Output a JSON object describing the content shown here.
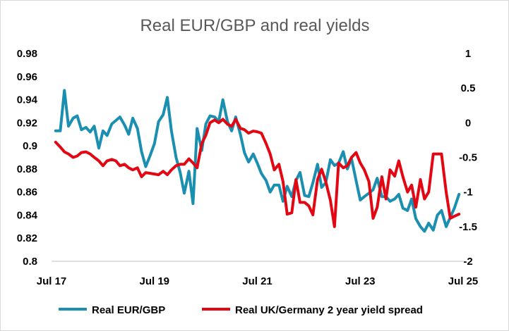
{
  "chart_data": {
    "type": "line",
    "title": "Real EUR/GBP and real yields",
    "x_ticks": [
      "Jul 17",
      "Jul 19",
      "Jul 21",
      "Jul 23",
      "Jul 25"
    ],
    "x_range": [
      "2017-07",
      "2025-07"
    ],
    "y_left": {
      "ticks": [
        "0.98",
        "0.96",
        "0.94",
        "0.92",
        "0.9",
        "0.88",
        "0.86",
        "0.84",
        "0.82",
        "0.8"
      ],
      "range": [
        0.8,
        0.98
      ]
    },
    "y_right": {
      "ticks": [
        "1",
        "0.5",
        "0",
        "-0.5",
        "-1",
        "-1.5",
        "-2"
      ],
      "range": [
        -2,
        1
      ]
    },
    "grid": false,
    "legend_position": "bottom",
    "series": [
      {
        "name": "Real EUR/GBP",
        "axis": "left",
        "color": "#1b8fb0",
        "values": [
          [
            2017.58,
            0.913
          ],
          [
            2017.67,
            0.913
          ],
          [
            2017.75,
            0.948
          ],
          [
            2017.83,
            0.917
          ],
          [
            2017.92,
            0.924
          ],
          [
            2018.0,
            0.926
          ],
          [
            2018.08,
            0.914
          ],
          [
            2018.17,
            0.916
          ],
          [
            2018.25,
            0.912
          ],
          [
            2018.33,
            0.917
          ],
          [
            2018.42,
            0.898
          ],
          [
            2018.5,
            0.913
          ],
          [
            2018.58,
            0.909
          ],
          [
            2018.67,
            0.919
          ],
          [
            2018.75,
            0.922
          ],
          [
            2018.83,
            0.925
          ],
          [
            2018.92,
            0.918
          ],
          [
            2019.0,
            0.91
          ],
          [
            2019.08,
            0.924
          ],
          [
            2019.17,
            0.915
          ],
          [
            2019.25,
            0.895
          ],
          [
            2019.33,
            0.882
          ],
          [
            2019.42,
            0.892
          ],
          [
            2019.5,
            0.902
          ],
          [
            2019.58,
            0.921
          ],
          [
            2019.67,
            0.927
          ],
          [
            2019.75,
            0.942
          ],
          [
            2019.83,
            0.913
          ],
          [
            2019.92,
            0.89
          ],
          [
            2020.0,
            0.877
          ],
          [
            2020.08,
            0.859
          ],
          [
            2020.17,
            0.878
          ],
          [
            2020.25,
            0.85
          ],
          [
            2020.33,
            0.915
          ],
          [
            2020.42,
            0.896
          ],
          [
            2020.5,
            0.919
          ],
          [
            2020.58,
            0.926
          ],
          [
            2020.67,
            0.925
          ],
          [
            2020.75,
            0.921
          ],
          [
            2020.83,
            0.94
          ],
          [
            2020.92,
            0.921
          ],
          [
            2021.0,
            0.913
          ],
          [
            2021.08,
            0.925
          ],
          [
            2021.17,
            0.91
          ],
          [
            2021.25,
            0.894
          ],
          [
            2021.33,
            0.886
          ],
          [
            2021.42,
            0.893
          ],
          [
            2021.5,
            0.885
          ],
          [
            2021.58,
            0.876
          ],
          [
            2021.67,
            0.87
          ],
          [
            2021.75,
            0.86
          ],
          [
            2021.83,
            0.866
          ],
          [
            2021.92,
            0.866
          ],
          [
            2022.0,
            0.852
          ],
          [
            2022.08,
            0.865
          ],
          [
            2022.17,
            0.856
          ],
          [
            2022.25,
            0.87
          ],
          [
            2022.33,
            0.877
          ],
          [
            2022.42,
            0.857
          ],
          [
            2022.5,
            0.856
          ],
          [
            2022.58,
            0.868
          ],
          [
            2022.67,
            0.884
          ],
          [
            2022.75,
            0.864
          ],
          [
            2022.83,
            0.868
          ],
          [
            2022.92,
            0.888
          ],
          [
            2023.0,
            0.883
          ],
          [
            2023.08,
            0.885
          ],
          [
            2023.17,
            0.895
          ],
          [
            2023.25,
            0.88
          ],
          [
            2023.33,
            0.889
          ],
          [
            2023.42,
            0.87
          ],
          [
            2023.5,
            0.853
          ],
          [
            2023.58,
            0.856
          ],
          [
            2023.67,
            0.859
          ],
          [
            2023.75,
            0.862
          ],
          [
            2023.83,
            0.872
          ],
          [
            2023.92,
            0.856
          ],
          [
            2024.0,
            0.856
          ],
          [
            2024.08,
            0.852
          ],
          [
            2024.17,
            0.854
          ],
          [
            2024.25,
            0.858
          ],
          [
            2024.33,
            0.846
          ],
          [
            2024.42,
            0.844
          ],
          [
            2024.5,
            0.854
          ],
          [
            2024.58,
            0.837
          ],
          [
            2024.67,
            0.83
          ],
          [
            2024.75,
            0.826
          ],
          [
            2024.83,
            0.833
          ],
          [
            2024.92,
            0.827
          ],
          [
            2025.0,
            0.84
          ],
          [
            2025.08,
            0.844
          ],
          [
            2025.17,
            0.83
          ],
          [
            2025.25,
            0.838
          ],
          [
            2025.33,
            0.846
          ],
          [
            2025.42,
            0.858
          ]
        ]
      },
      {
        "name": "Real UK/Germany 2 year yield spread",
        "axis": "right",
        "color": "#e30613",
        "values": [
          [
            2017.58,
            -0.28
          ],
          [
            2017.67,
            -0.35
          ],
          [
            2017.75,
            -0.42
          ],
          [
            2017.83,
            -0.45
          ],
          [
            2017.92,
            -0.5
          ],
          [
            2018.0,
            -0.48
          ],
          [
            2018.08,
            -0.43
          ],
          [
            2018.17,
            -0.42
          ],
          [
            2018.25,
            -0.45
          ],
          [
            2018.33,
            -0.5
          ],
          [
            2018.42,
            -0.55
          ],
          [
            2018.5,
            -0.62
          ],
          [
            2018.58,
            -0.55
          ],
          [
            2018.67,
            -0.53
          ],
          [
            2018.75,
            -0.55
          ],
          [
            2018.83,
            -0.62
          ],
          [
            2018.92,
            -0.6
          ],
          [
            2019.0,
            -0.65
          ],
          [
            2019.08,
            -0.68
          ],
          [
            2019.17,
            -0.65
          ],
          [
            2019.25,
            -0.78
          ],
          [
            2019.33,
            -0.72
          ],
          [
            2019.42,
            -0.73
          ],
          [
            2019.5,
            -0.74
          ],
          [
            2019.58,
            -0.75
          ],
          [
            2019.67,
            -0.7
          ],
          [
            2019.75,
            -0.75
          ],
          [
            2019.83,
            -0.68
          ],
          [
            2019.92,
            -0.62
          ],
          [
            2020.0,
            -0.6
          ],
          [
            2020.08,
            -0.6
          ],
          [
            2020.17,
            -0.52
          ],
          [
            2020.25,
            -0.58
          ],
          [
            2020.33,
            -0.65
          ],
          [
            2020.42,
            -0.3
          ],
          [
            2020.5,
            -0.18
          ],
          [
            2020.58,
            0.0
          ],
          [
            2020.67,
            0.04
          ],
          [
            2020.75,
            0.0
          ],
          [
            2020.83,
            0.05
          ],
          [
            2020.92,
            -0.02
          ],
          [
            2021.0,
            -0.05
          ],
          [
            2021.08,
            0.05
          ],
          [
            2021.17,
            -0.08
          ],
          [
            2021.25,
            -0.1
          ],
          [
            2021.33,
            -0.15
          ],
          [
            2021.42,
            -0.12
          ],
          [
            2021.5,
            -0.13
          ],
          [
            2021.58,
            -0.15
          ],
          [
            2021.67,
            -0.3
          ],
          [
            2021.75,
            -0.45
          ],
          [
            2021.83,
            -0.68
          ],
          [
            2021.92,
            -0.6
          ],
          [
            2022.0,
            -0.85
          ],
          [
            2022.08,
            -1.32
          ],
          [
            2022.17,
            -1.3
          ],
          [
            2022.25,
            -0.82
          ],
          [
            2022.33,
            -1.15
          ],
          [
            2022.42,
            -1.15
          ],
          [
            2022.5,
            -1.2
          ],
          [
            2022.58,
            -1.33
          ],
          [
            2022.67,
            -0.82
          ],
          [
            2022.75,
            -0.67
          ],
          [
            2022.83,
            -0.85
          ],
          [
            2022.92,
            -1.12
          ],
          [
            2023.0,
            -1.5
          ],
          [
            2023.08,
            -0.58
          ],
          [
            2023.17,
            -0.65
          ],
          [
            2023.25,
            -0.62
          ],
          [
            2023.33,
            -0.5
          ],
          [
            2023.42,
            -0.43
          ],
          [
            2023.5,
            -0.58
          ],
          [
            2023.58,
            -0.68
          ],
          [
            2023.67,
            -0.85
          ],
          [
            2023.75,
            -1.38
          ],
          [
            2023.83,
            -1.22
          ],
          [
            2023.92,
            -0.78
          ],
          [
            2024.0,
            -1.1
          ],
          [
            2024.08,
            -0.68
          ],
          [
            2024.17,
            -0.77
          ],
          [
            2024.25,
            -0.55
          ],
          [
            2024.33,
            -0.78
          ],
          [
            2024.42,
            -1.0
          ],
          [
            2024.5,
            -0.9
          ],
          [
            2024.58,
            -1.22
          ],
          [
            2024.67,
            -0.82
          ],
          [
            2024.75,
            -1.1
          ],
          [
            2024.83,
            -1.0
          ],
          [
            2024.92,
            -0.45
          ],
          [
            2025.0,
            -0.45
          ],
          [
            2025.08,
            -0.45
          ],
          [
            2025.17,
            -1.0
          ],
          [
            2025.25,
            -1.38
          ],
          [
            2025.33,
            -1.35
          ],
          [
            2025.42,
            -1.32
          ]
        ]
      }
    ]
  }
}
